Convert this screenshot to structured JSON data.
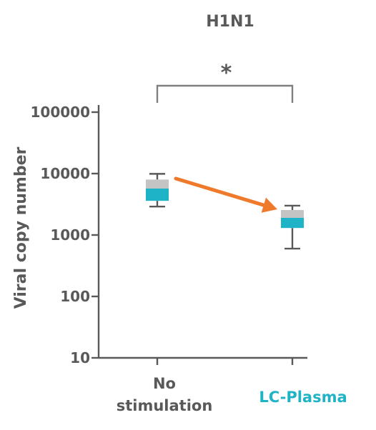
{
  "chart_data": {
    "type": "box",
    "title": "H1N1",
    "ylabel": "Viral copy number",
    "xlabel": "",
    "yscale": "log",
    "ylim": [
      10,
      100000
    ],
    "yticks": [
      {
        "value": 10,
        "label": "10"
      },
      {
        "value": 100,
        "label": "100"
      },
      {
        "value": 1000,
        "label": "1000"
      },
      {
        "value": 10000,
        "label": "10000"
      },
      {
        "value": 100000,
        "label": "100000"
      }
    ],
    "categories": [
      {
        "label_lines": [
          "No",
          "stimulation"
        ],
        "color": "#595959"
      },
      {
        "label_lines": [
          "LC-Plasma"
        ],
        "color": "#1fb3c8"
      }
    ],
    "boxes": [
      {
        "whisker_low": 2900,
        "q1": 3600,
        "median": 5700,
        "q3": 8000,
        "whisker_high": 9900
      },
      {
        "whisker_low": 600,
        "q1": 1300,
        "median": 1900,
        "q3": 2550,
        "whisker_high": 3000
      }
    ],
    "significance": {
      "from": 0,
      "to": 1,
      "label": "*"
    },
    "arrow": {
      "from": 0,
      "to": 1
    },
    "colors": {
      "lower_box": "#1fb3c8",
      "upper_box": "#c4c4c4",
      "axis": "#595959",
      "arrow": "#f07a2c",
      "text": "#595959"
    }
  }
}
